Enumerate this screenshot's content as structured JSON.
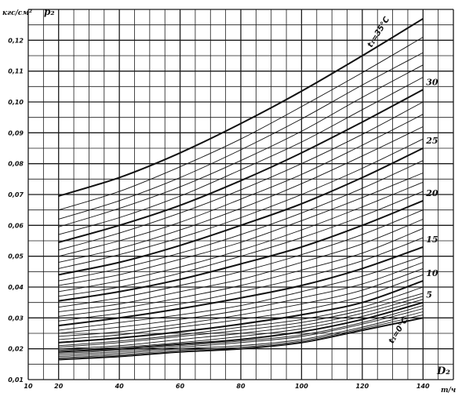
{
  "chart_data": {
    "type": "line",
    "title": "",
    "ylabel": "кгс/см²",
    "ysymbol": "p₂",
    "xlabel_symbol": "D₂",
    "xlabel_unit": "т/ч",
    "xlim": [
      10,
      150
    ],
    "ylim": [
      0.01,
      0.13
    ],
    "x_ticks": [
      10,
      20,
      40,
      60,
      80,
      100,
      120,
      140
    ],
    "x_tick_labels": [
      "10",
      "20",
      "40",
      "60",
      "80",
      "100",
      "120",
      "140"
    ],
    "y_ticks": [
      0.01,
      0.02,
      0.03,
      0.04,
      0.05,
      0.06,
      0.07,
      0.08,
      0.09,
      0.1,
      0.11,
      0.12
    ],
    "y_tick_labels": [
      "0,01",
      "0,02",
      "0,03",
      "0,04",
      "0,05",
      "0,06",
      "0,07",
      "0,08",
      "0,09",
      "0,10",
      "0,11",
      "0,12"
    ],
    "grid": true,
    "series_param": "t₁ (°C)",
    "x": [
      20,
      40,
      60,
      80,
      100,
      120,
      140
    ],
    "series": [
      {
        "t": 0,
        "values": [
          0.0165,
          0.0175,
          0.019,
          0.02,
          0.022,
          0.026,
          0.03
        ]
      },
      {
        "t": 1,
        "values": [
          0.017,
          0.018,
          0.0195,
          0.0205,
          0.0225,
          0.0265,
          0.031
        ]
      },
      {
        "t": 2,
        "values": [
          0.0175,
          0.0185,
          0.02,
          0.021,
          0.023,
          0.027,
          0.032
        ]
      },
      {
        "t": 3,
        "values": [
          0.018,
          0.019,
          0.0205,
          0.022,
          0.024,
          0.028,
          0.033
        ]
      },
      {
        "t": 4,
        "values": [
          0.0185,
          0.0195,
          0.021,
          0.0225,
          0.0245,
          0.0285,
          0.034
        ]
      },
      {
        "t": 5,
        "values": [
          0.019,
          0.02,
          0.0215,
          0.023,
          0.0255,
          0.0295,
          0.035
        ]
      },
      {
        "t": 6,
        "values": [
          0.0195,
          0.0205,
          0.022,
          0.024,
          0.0265,
          0.0305,
          0.036
        ]
      },
      {
        "t": 7,
        "values": [
          0.02,
          0.021,
          0.023,
          0.025,
          0.0275,
          0.0315,
          0.037
        ]
      },
      {
        "t": 8,
        "values": [
          0.0205,
          0.022,
          0.024,
          0.026,
          0.0285,
          0.0325,
          0.038
        ]
      },
      {
        "t": 9,
        "values": [
          0.021,
          0.0225,
          0.0245,
          0.027,
          0.0295,
          0.0335,
          0.04
        ]
      },
      {
        "t": 10,
        "values": [
          0.022,
          0.0235,
          0.0255,
          0.028,
          0.031,
          0.035,
          0.042
        ]
      },
      {
        "t": 11,
        "values": [
          0.023,
          0.0245,
          0.027,
          0.0295,
          0.0325,
          0.037,
          0.044
        ]
      },
      {
        "t": 12,
        "values": [
          0.024,
          0.0255,
          0.028,
          0.031,
          0.0345,
          0.039,
          0.046
        ]
      },
      {
        "t": 13,
        "values": [
          0.025,
          0.027,
          0.0295,
          0.0325,
          0.0365,
          0.041,
          0.048
        ]
      },
      {
        "t": 14,
        "values": [
          0.026,
          0.0285,
          0.031,
          0.034,
          0.0385,
          0.0435,
          0.05
        ]
      },
      {
        "t": 15,
        "values": [
          0.0275,
          0.03,
          0.033,
          0.0365,
          0.0405,
          0.046,
          0.053
        ]
      },
      {
        "t": 16,
        "values": [
          0.029,
          0.0315,
          0.0345,
          0.0385,
          0.043,
          0.0485,
          0.056
        ]
      },
      {
        "t": 17,
        "values": [
          0.0305,
          0.033,
          0.0365,
          0.0405,
          0.0455,
          0.051,
          0.059
        ]
      },
      {
        "t": 18,
        "values": [
          0.032,
          0.0345,
          0.0385,
          0.0425,
          0.048,
          0.054,
          0.062
        ]
      },
      {
        "t": 19,
        "values": [
          0.0335,
          0.0365,
          0.0405,
          0.045,
          0.0505,
          0.057,
          0.065
        ]
      },
      {
        "t": 20,
        "values": [
          0.0355,
          0.0385,
          0.0425,
          0.0475,
          0.053,
          0.06,
          0.068
        ]
      },
      {
        "t": 21,
        "values": [
          0.037,
          0.04,
          0.0445,
          0.05,
          0.056,
          0.063,
          0.071
        ]
      },
      {
        "t": 22,
        "values": [
          0.0385,
          0.042,
          0.0465,
          0.052,
          0.0585,
          0.066,
          0.074
        ]
      },
      {
        "t": 23,
        "values": [
          0.0405,
          0.044,
          0.049,
          0.0545,
          0.0615,
          0.069,
          0.077
        ]
      },
      {
        "t": 24,
        "values": [
          0.042,
          0.046,
          0.051,
          0.057,
          0.064,
          0.072,
          0.081
        ]
      },
      {
        "t": 25,
        "values": [
          0.044,
          0.048,
          0.0535,
          0.06,
          0.067,
          0.0755,
          0.085
        ]
      },
      {
        "t": 26,
        "values": [
          0.046,
          0.0505,
          0.056,
          0.0625,
          0.07,
          0.0785,
          0.088
        ]
      },
      {
        "t": 27,
        "values": [
          0.048,
          0.0525,
          0.0585,
          0.0655,
          0.0735,
          0.0825,
          0.092
        ]
      },
      {
        "t": 28,
        "values": [
          0.05,
          0.055,
          0.061,
          0.0685,
          0.0765,
          0.086,
          0.096
        ]
      },
      {
        "t": 29,
        "values": [
          0.052,
          0.0575,
          0.064,
          0.0715,
          0.08,
          0.0895,
          0.1
        ]
      },
      {
        "t": 30,
        "values": [
          0.0545,
          0.06,
          0.0665,
          0.0745,
          0.0835,
          0.0935,
          0.104
        ]
      },
      {
        "t": 31,
        "values": [
          0.057,
          0.0625,
          0.0695,
          0.078,
          0.087,
          0.0975,
          0.108
        ]
      },
      {
        "t": 32,
        "values": [
          0.0595,
          0.0655,
          0.0725,
          0.081,
          0.0905,
          0.1015,
          0.112
        ]
      },
      {
        "t": 33,
        "values": [
          0.062,
          0.068,
          0.0755,
          0.0845,
          0.0945,
          0.1055,
          0.116
        ]
      },
      {
        "t": 34,
        "values": [
          0.065,
          0.071,
          0.079,
          0.088,
          0.0985,
          0.1095,
          0.121
        ]
      },
      {
        "t": 35,
        "values": [
          0.0695,
          0.0755,
          0.0835,
          0.093,
          0.1035,
          0.115,
          0.127
        ]
      }
    ],
    "major_series": [
      0,
      5,
      10,
      15,
      20,
      25,
      30,
      35
    ],
    "edge_labels": [
      {
        "t": 30,
        "text": "30"
      },
      {
        "t": 25,
        "text": "25"
      },
      {
        "t": 20,
        "text": "20"
      },
      {
        "t": 15,
        "text": "15"
      },
      {
        "t": 10,
        "text": "10"
      },
      {
        "t": 5,
        "text": "5"
      }
    ],
    "curve_label_top": "t₁=35°C",
    "curve_label_bottom": "t₁=0°C"
  }
}
